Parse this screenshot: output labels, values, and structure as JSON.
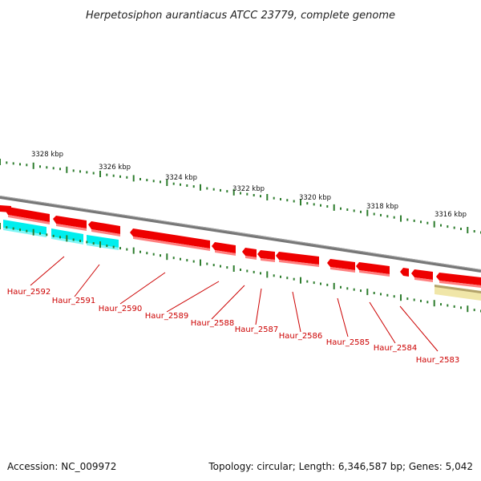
{
  "title": "Herpetosiphon aurantiacus ATCC 23779, complete genome",
  "footer": {
    "accession": "Accession: NC_009972",
    "topology": "Topology: circular; Length: 6,346,587 bp; Genes: 5,042"
  },
  "scale": {
    "unit": "kbp",
    "labels": [
      "3328 kbp",
      "3326 kbp",
      "3324 kbp",
      "3322 kbp",
      "3320 kbp",
      "3318 kbp",
      "3316 kbp"
    ]
  },
  "genes": [
    {
      "name": "Haur_2592"
    },
    {
      "name": "Haur_2591"
    },
    {
      "name": "Haur_2590"
    },
    {
      "name": "Haur_2589"
    },
    {
      "name": "Haur_2588"
    },
    {
      "name": "Haur_2587"
    },
    {
      "name": "Haur_2586"
    },
    {
      "name": "Haur_2585"
    },
    {
      "name": "Haur_2584"
    },
    {
      "name": "Haur_2583"
    }
  ],
  "colors": {
    "cds": "#ee0000",
    "cds_side": "#ff8080",
    "rna": "#00eeee",
    "rna_side": "#80f6f6",
    "backbone": "#777777",
    "tick": "#2e7d2e",
    "label": "#cc0000",
    "feature_other": "#f0e6a8"
  }
}
